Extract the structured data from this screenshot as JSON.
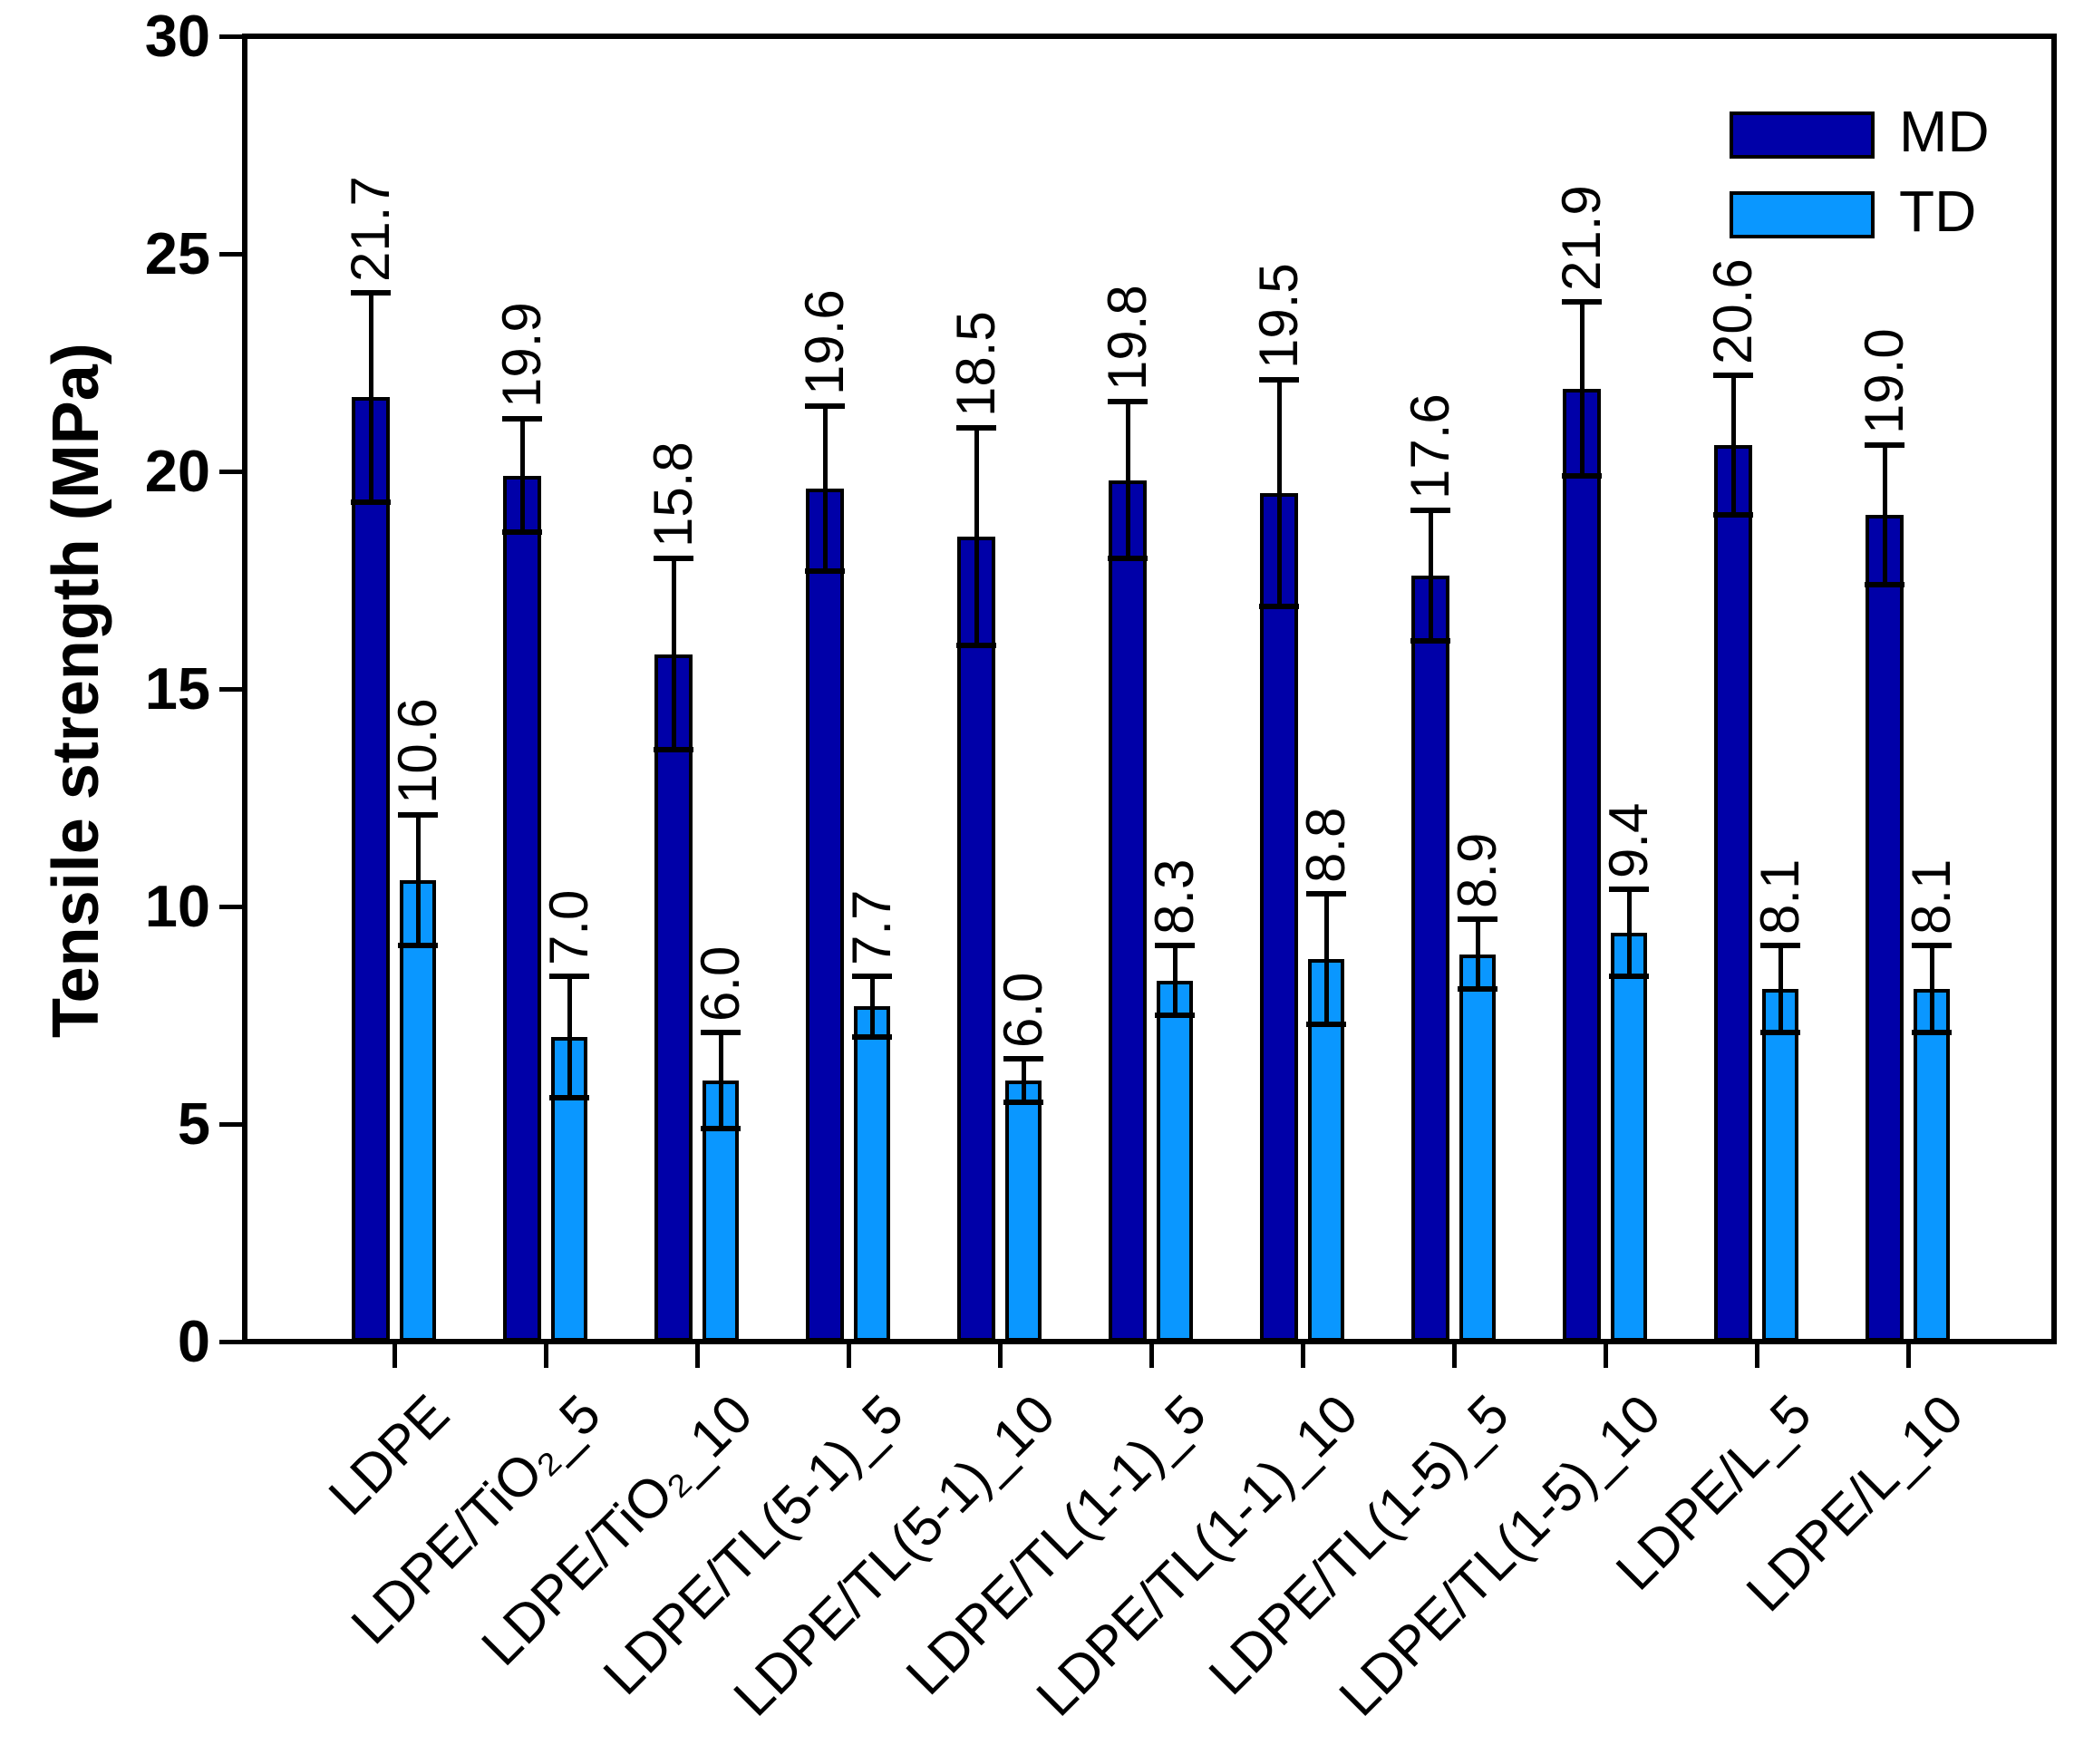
{
  "chart_data": {
    "type": "bar",
    "title": "",
    "xlabel": "",
    "ylabel": "Tensile strength (MPa)",
    "ylim": [
      0,
      30
    ],
    "yticks": [
      0,
      5,
      10,
      15,
      20,
      25,
      30
    ],
    "grid": false,
    "legend_position": "top-right-inside",
    "categories": [
      "LDPE",
      "LDPE/TiO₂_5",
      "LDPE/TiO₂_10",
      "LDPE/TL(5-1)_5",
      "LDPE/TL(5-1)_10",
      "LDPE/TL(1-1)_5",
      "LDPE/TL(1-1)_10",
      "LDPE/TL(1-5)_5",
      "LDPE/TL(1-5)_10",
      "LDPE/L_5",
      "LDPE/L_10"
    ],
    "series": [
      {
        "name": "MD",
        "color": "#0000A8",
        "values": [
          21.7,
          19.9,
          15.8,
          19.6,
          18.5,
          19.8,
          19.5,
          17.6,
          21.9,
          20.6,
          19.0
        ],
        "errors": [
          2.4,
          1.3,
          2.2,
          1.9,
          2.5,
          1.8,
          2.6,
          1.5,
          2.0,
          1.6,
          1.6
        ],
        "value_labels": [
          "21.7",
          "19.9",
          "15.8",
          "19.6",
          "18.5",
          "19.8",
          "19.5",
          "17.6",
          "21.9",
          "20.6",
          "19.0"
        ]
      },
      {
        "name": "TD",
        "color": "#0A97FF",
        "values": [
          10.6,
          7.0,
          6.0,
          7.7,
          6.0,
          8.3,
          8.8,
          8.9,
          9.4,
          8.1,
          8.1
        ],
        "errors": [
          1.5,
          1.4,
          1.1,
          0.7,
          0.5,
          0.8,
          1.5,
          0.8,
          1.0,
          1.0,
          1.0
        ],
        "value_labels": [
          "10.6",
          "7.0",
          "6.0",
          "7.7",
          "6.0",
          "8.3",
          "8.8",
          "8.9",
          "9.4",
          "8.1",
          "8.1"
        ]
      }
    ]
  },
  "legend": {
    "items": [
      {
        "label": "MD",
        "color": "#0000A8"
      },
      {
        "label": "TD",
        "color": "#0A97FF"
      }
    ]
  },
  "axis": {
    "y_title": "Tensile strength (MPa)"
  },
  "colors": {
    "background": "#FFFFFF",
    "axis": "#000000",
    "bar_outline": "#000000",
    "error_bar": "#000000",
    "text": "#000000"
  }
}
